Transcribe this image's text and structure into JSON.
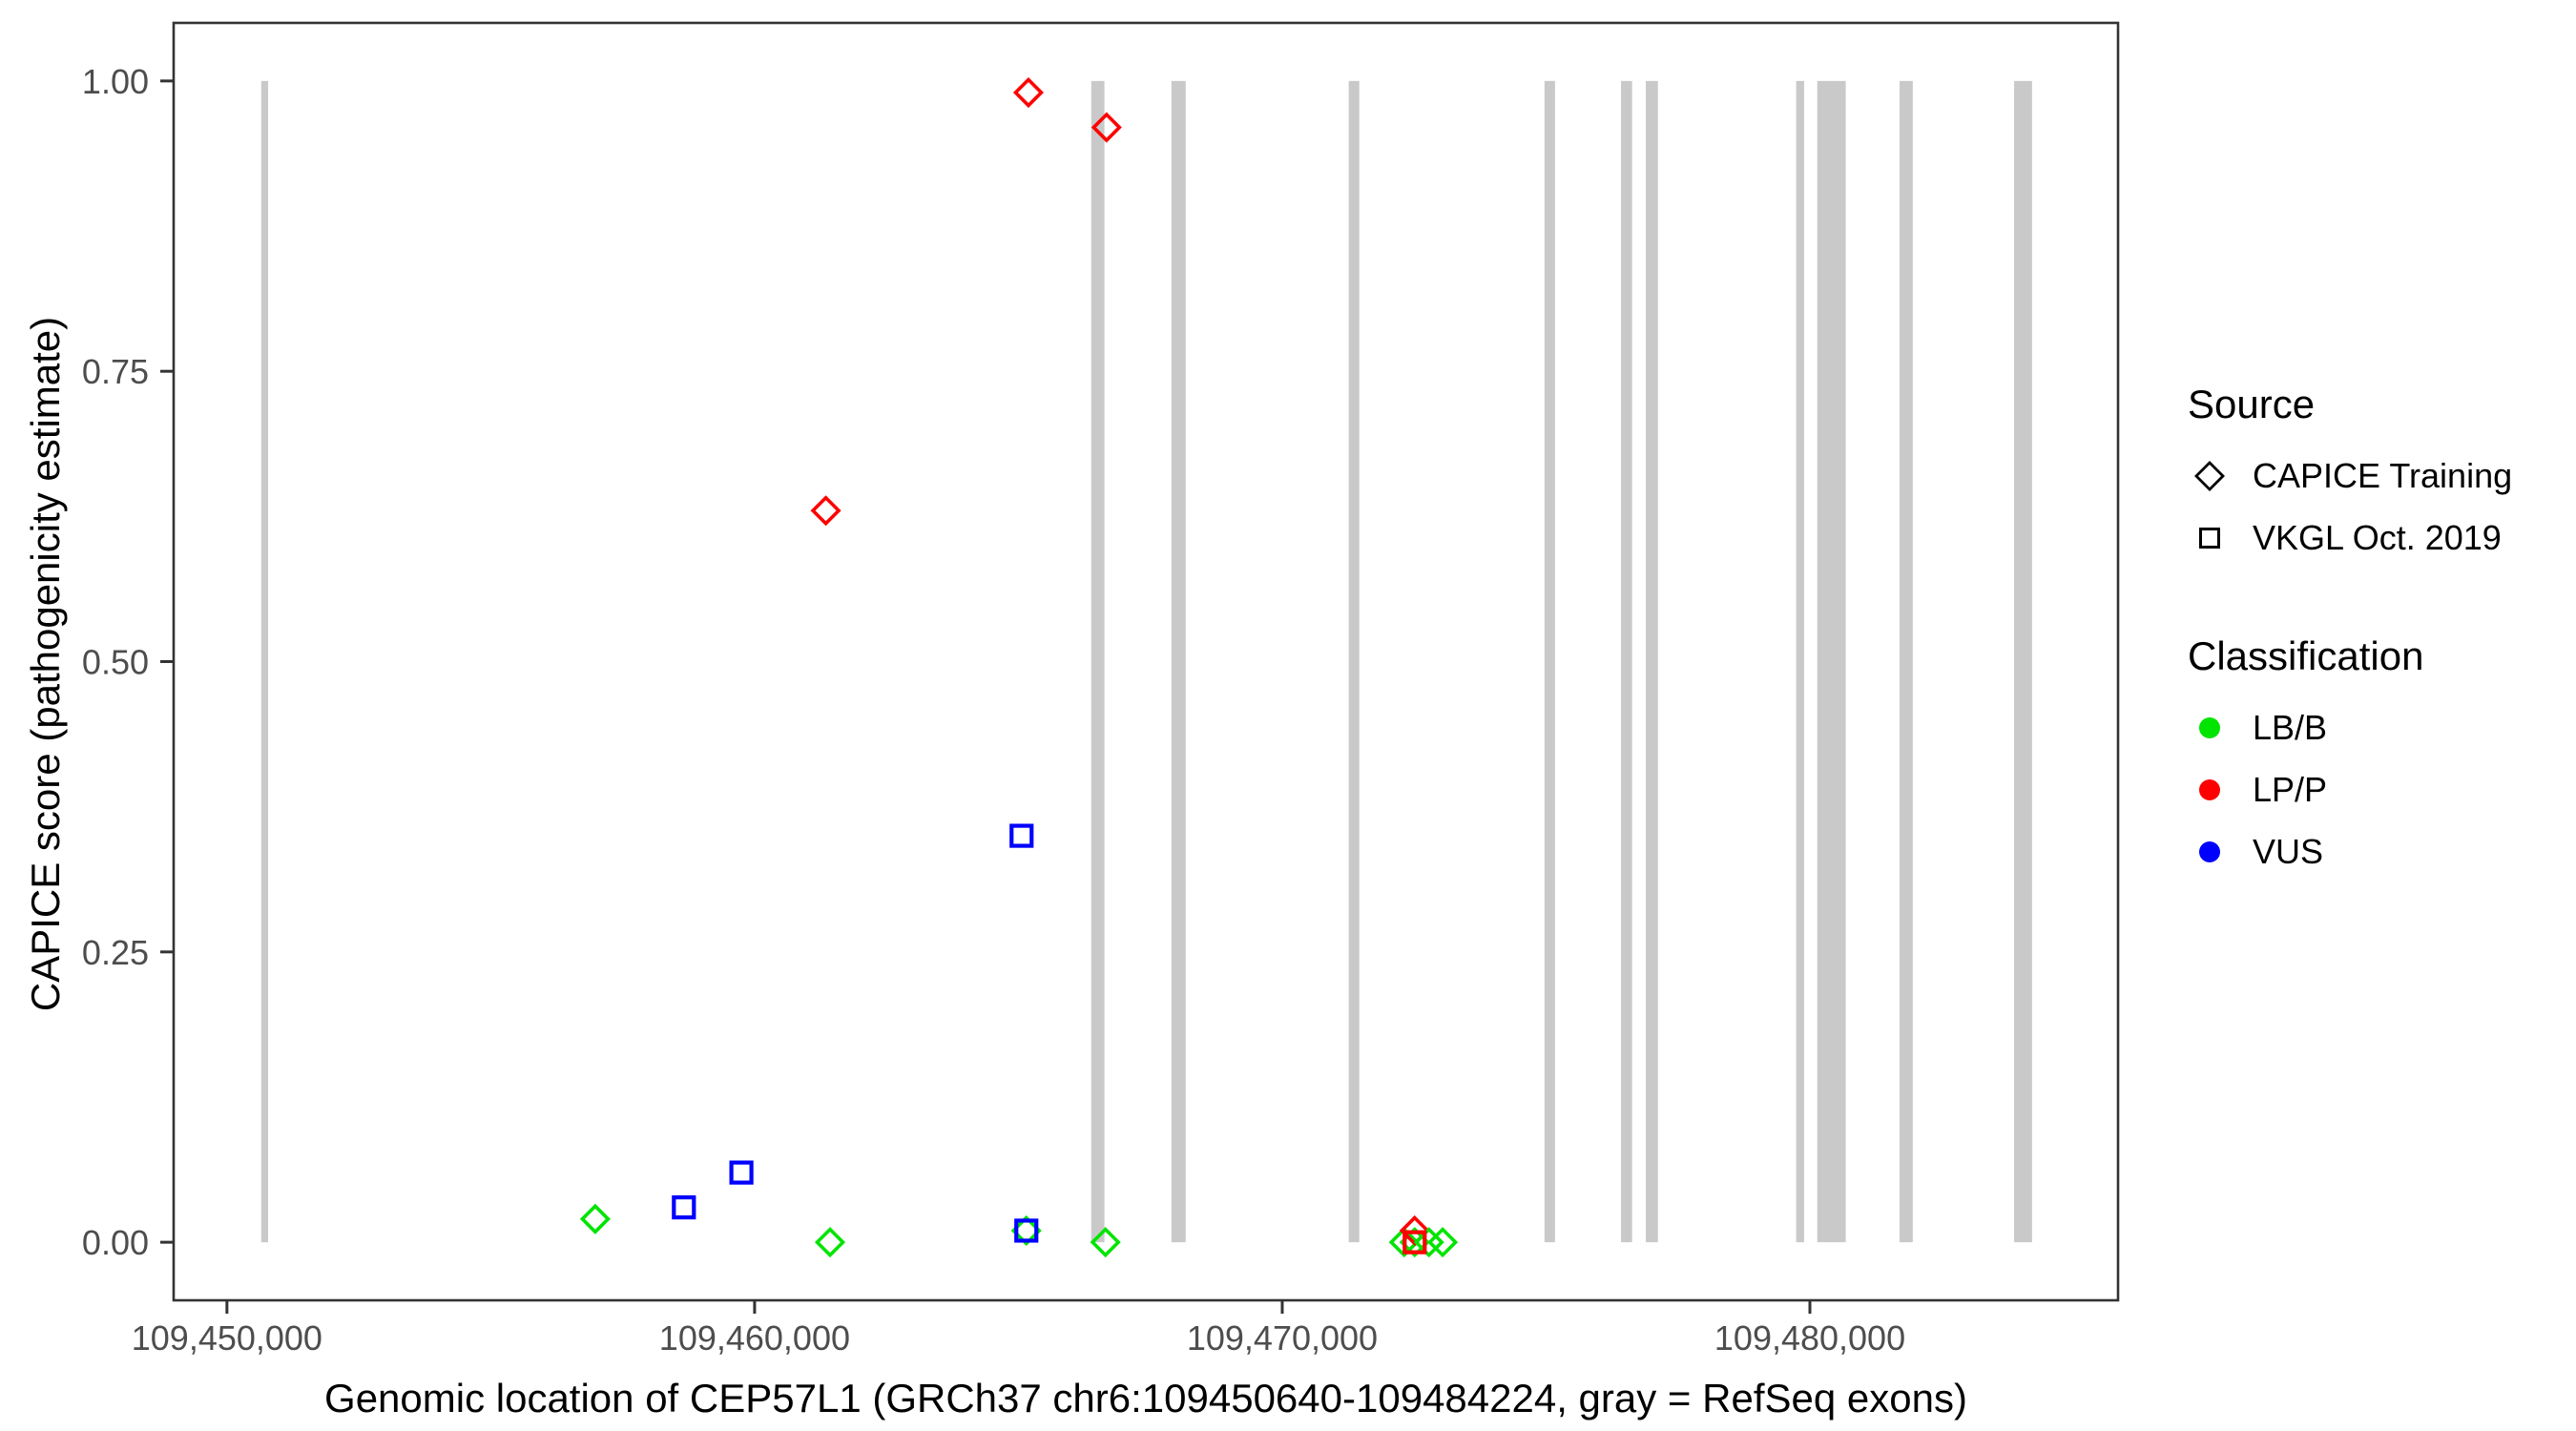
{
  "chart_data": {
    "type": "scatter",
    "title": "",
    "xlabel": "Genomic location of CEP57L1 (GRCh37 chr6:109450640-109484224, gray = RefSeq exons)",
    "ylabel": "CAPICE score (pathogenicity estimate)",
    "xlim": [
      109448990,
      109485840
    ],
    "ylim": [
      -0.05,
      1.05
    ],
    "grid": false,
    "legend_position": "right",
    "x_ticks": [
      {
        "value": 109450000,
        "label": "109,450,000"
      },
      {
        "value": 109460000,
        "label": "109,460,000"
      },
      {
        "value": 109470000,
        "label": "109,470,000"
      },
      {
        "value": 109480000,
        "label": "109,480,000"
      }
    ],
    "y_ticks": [
      {
        "value": 0.0,
        "label": "0.00"
      },
      {
        "value": 0.25,
        "label": "0.25"
      },
      {
        "value": 0.5,
        "label": "0.50"
      },
      {
        "value": 0.75,
        "label": "0.75"
      },
      {
        "value": 1.0,
        "label": "1.00"
      }
    ],
    "exon_color": "#C9C9C9",
    "exons_note": "gray vertical bars spanning score 0 to 1 = RefSeq exons",
    "exons": [
      [
        109450650,
        109450780
      ],
      [
        109466380,
        109466630
      ],
      [
        109467900,
        109468170
      ],
      [
        109471260,
        109471460
      ],
      [
        109474970,
        109475170
      ],
      [
        109476420,
        109476630
      ],
      [
        109476890,
        109477120
      ],
      [
        109479740,
        109479890
      ],
      [
        109480140,
        109480680
      ],
      [
        109481700,
        109481950
      ],
      [
        109483870,
        109484210
      ]
    ],
    "classification_colors": {
      "LB/B": "#00E400",
      "LP/P": "#FF0000",
      "VUS": "#0000FF"
    },
    "series": [
      {
        "name": "CAPICE Training",
        "marker": "diamond",
        "points": [
          {
            "x": 109456980,
            "y": 0.02,
            "class": "LB/B"
          },
          {
            "x": 109461350,
            "y": 0.63,
            "class": "LP/P"
          },
          {
            "x": 109461430,
            "y": 0.0,
            "class": "LB/B"
          },
          {
            "x": 109465150,
            "y": 0.01,
            "class": "LB/B"
          },
          {
            "x": 109465190,
            "y": 0.99,
            "class": "LP/P"
          },
          {
            "x": 109466650,
            "y": 0.0,
            "class": "LB/B"
          },
          {
            "x": 109466670,
            "y": 0.96,
            "class": "LP/P"
          },
          {
            "x": 109472310,
            "y": 0.0,
            "class": "LB/B"
          },
          {
            "x": 109472510,
            "y": 0.0,
            "class": "LB/B"
          },
          {
            "x": 109472510,
            "y": 0.01,
            "class": "LP/P"
          },
          {
            "x": 109472780,
            "y": 0.0,
            "class": "LB/B"
          },
          {
            "x": 109473040,
            "y": 0.0,
            "class": "LB/B"
          }
        ]
      },
      {
        "name": "VKGL Oct. 2019",
        "marker": "square",
        "points": [
          {
            "x": 109458660,
            "y": 0.03,
            "class": "VUS"
          },
          {
            "x": 109459750,
            "y": 0.06,
            "class": "VUS"
          },
          {
            "x": 109465060,
            "y": 0.35,
            "class": "VUS"
          },
          {
            "x": 109465150,
            "y": 0.01,
            "class": "VUS"
          },
          {
            "x": 109472510,
            "y": 0.0,
            "class": "LP/P"
          }
        ]
      }
    ]
  },
  "axes": {
    "x_title": "Genomic location of CEP57L1 (GRCh37 chr6:109450640-109484224, gray = RefSeq exons)",
    "y_title": "CAPICE score (pathogenicity estimate)"
  },
  "legend": {
    "source_title": "Source",
    "source_items": [
      {
        "label": "CAPICE Training",
        "marker": "diamond"
      },
      {
        "label": "VKGL Oct. 2019",
        "marker": "square"
      }
    ],
    "classification_title": "Classification",
    "classification_items": [
      {
        "label": "LB/B",
        "color": "#00E400"
      },
      {
        "label": "LP/P",
        "color": "#FF0000"
      },
      {
        "label": "VUS",
        "color": "#0000FF"
      }
    ]
  }
}
